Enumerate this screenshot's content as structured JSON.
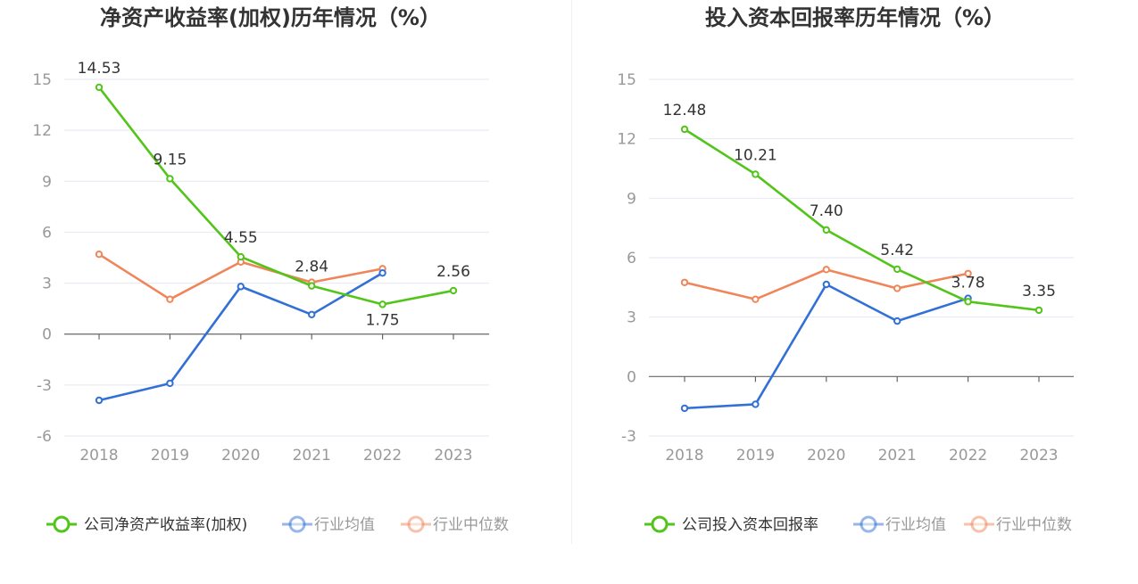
{
  "colors": {
    "company": "#52c41a",
    "industry_avg": "#3370d6",
    "industry_median": "#f0855a",
    "grid": "#e4e7f2",
    "axis": "#666666",
    "tick_text": "#999999",
    "title_text": "#333333"
  },
  "chart_data": [
    {
      "type": "line",
      "title": "净资产收益率(加权)历年情况（%）",
      "categories": [
        "2018",
        "2019",
        "2020",
        "2021",
        "2022",
        "2023"
      ],
      "ylim": [
        -6,
        15
      ],
      "yticks": [
        -6,
        -3,
        0,
        3,
        6,
        9,
        12,
        15
      ],
      "series": [
        {
          "name": "公司净资产收益率(加权)",
          "key": "company",
          "values": [
            14.53,
            9.15,
            4.55,
            2.84,
            1.75,
            2.56
          ],
          "labels": [
            "14.53",
            "9.15",
            "4.55",
            "2.84",
            "1.75",
            "2.56"
          ]
        },
        {
          "name": "行业均值",
          "key": "industry_avg",
          "values": [
            -3.9,
            -2.9,
            2.8,
            1.15,
            3.6,
            null
          ]
        },
        {
          "name": "行业中位数",
          "key": "industry_median",
          "values": [
            4.7,
            2.05,
            4.25,
            3.05,
            3.85,
            null
          ]
        }
      ]
    },
    {
      "type": "line",
      "title": "投入资本回报率历年情况（%）",
      "categories": [
        "2018",
        "2019",
        "2020",
        "2021",
        "2022",
        "2023"
      ],
      "ylim": [
        -3,
        15
      ],
      "yticks": [
        -3,
        0,
        3,
        6,
        9,
        12,
        15
      ],
      "series": [
        {
          "name": "公司投入资本回报率",
          "key": "company",
          "values": [
            12.48,
            10.21,
            7.4,
            5.42,
            3.78,
            3.35
          ],
          "labels": [
            "12.48",
            "10.21",
            "7.40",
            "5.42",
            "3.78",
            "3.35"
          ]
        },
        {
          "name": "行业均值",
          "key": "industry_avg",
          "values": [
            -1.6,
            -1.4,
            4.65,
            2.8,
            3.95,
            null
          ]
        },
        {
          "name": "行业中位数",
          "key": "industry_median",
          "values": [
            4.75,
            3.9,
            5.4,
            4.45,
            5.2,
            null
          ]
        }
      ]
    }
  ]
}
